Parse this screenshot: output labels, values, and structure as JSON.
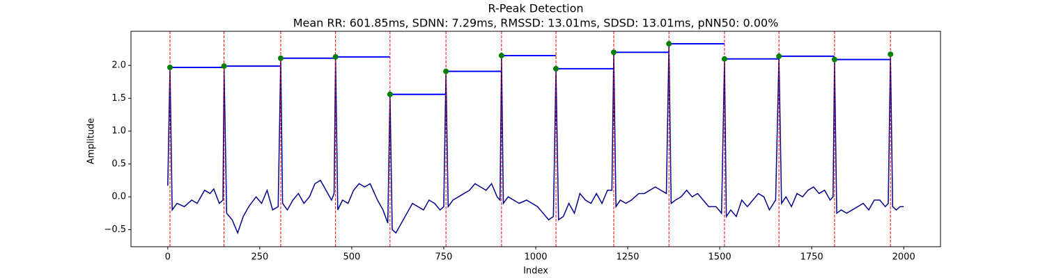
{
  "chart_data": {
    "type": "line",
    "title": "R-Peak Detection",
    "subtitle": "Mean RR: 601.85ms, SDNN: 7.29ms, RMSSD: 13.01ms, SDSD: 13.01ms, pNN50: 0.00%",
    "x_label": "Index",
    "y_label": "Amplitude",
    "xlim": [
      -100,
      2100
    ],
    "ylim": [
      -0.76,
      2.52
    ],
    "xticks": [
      0,
      250,
      500,
      750,
      1000,
      1250,
      1500,
      1750,
      2000
    ],
    "yticks": [
      {
        "value": -0.5,
        "label": "−0.5"
      },
      {
        "value": 0,
        "label": "0.0"
      },
      0.5,
      {
        "value": 1,
        "label": "1.0"
      },
      1.5,
      {
        "value": 2,
        "label": "2.0"
      }
    ],
    "series": [
      {
        "color": "#00008b",
        "x": [
          0,
          6,
          12,
          25,
          45,
          65,
          80,
          100,
          115,
          125,
          140,
          150,
          153,
          160,
          175,
          190,
          205,
          220,
          240,
          255,
          270,
          285,
          300,
          307,
          312,
          325,
          340,
          355,
          370,
          385,
          400,
          415,
          430,
          445,
          452,
          456,
          462,
          475,
          490,
          505,
          520,
          535,
          550,
          570,
          585,
          598,
          604,
          610,
          620,
          635,
          650,
          665,
          680,
          695,
          710,
          725,
          740,
          750,
          756,
          762,
          775,
          790,
          805,
          820,
          835,
          850,
          865,
          880,
          895,
          903,
          907,
          912,
          925,
          940,
          955,
          975,
          990,
          1005,
          1020,
          1035,
          1048,
          1055,
          1062,
          1075,
          1090,
          1105,
          1120,
          1135,
          1150,
          1165,
          1180,
          1195,
          1207,
          1212,
          1218,
          1230,
          1245,
          1260,
          1280,
          1295,
          1310,
          1325,
          1340,
          1355,
          1362,
          1368,
          1380,
          1395,
          1410,
          1425,
          1440,
          1455,
          1470,
          1490,
          1505,
          1513,
          1518,
          1530,
          1545,
          1560,
          1575,
          1590,
          1605,
          1620,
          1635,
          1652,
          1661,
          1668,
          1680,
          1695,
          1710,
          1725,
          1740,
          1755,
          1770,
          1785,
          1800,
          1808,
          1812,
          1818,
          1830,
          1845,
          1860,
          1875,
          1890,
          1905,
          1920,
          1935,
          1950,
          1958,
          1964,
          1970,
          1980,
          1990,
          2000
        ],
        "values": [
          0.17,
          1.97,
          -0.2,
          -0.1,
          -0.15,
          -0.05,
          -0.1,
          0.1,
          0.05,
          0.12,
          -0.1,
          -0.05,
          1.99,
          -0.25,
          -0.35,
          -0.55,
          -0.3,
          -0.15,
          0.0,
          -0.1,
          0.1,
          -0.2,
          -0.15,
          2.11,
          -0.1,
          -0.2,
          -0.05,
          0.05,
          -0.1,
          0.0,
          0.2,
          0.25,
          0.1,
          -0.05,
          0.05,
          2.13,
          -0.2,
          -0.05,
          -0.1,
          0.1,
          0.2,
          0.15,
          0.2,
          -0.05,
          -0.2,
          -0.4,
          1.56,
          -0.5,
          -0.55,
          -0.4,
          -0.25,
          -0.1,
          -0.15,
          -0.2,
          -0.05,
          -0.1,
          -0.2,
          -0.15,
          1.91,
          -0.15,
          -0.05,
          0.0,
          0.05,
          0.1,
          0.2,
          0.15,
          0.1,
          0.2,
          0.0,
          -0.05,
          2.15,
          -0.1,
          0.0,
          -0.05,
          -0.1,
          -0.05,
          -0.1,
          -0.15,
          -0.25,
          -0.35,
          -0.3,
          1.95,
          -0.35,
          -0.3,
          -0.1,
          -0.25,
          0.05,
          -0.05,
          -0.1,
          0.05,
          -0.1,
          0.1,
          0.1,
          2.2,
          -0.15,
          -0.05,
          -0.1,
          -0.05,
          0.05,
          0.05,
          0.1,
          0.15,
          0.1,
          0.05,
          2.33,
          -0.1,
          -0.05,
          0.0,
          0.1,
          0.0,
          0.05,
          -0.05,
          -0.15,
          -0.15,
          -0.25,
          2.1,
          -0.3,
          -0.2,
          -0.3,
          -0.05,
          -0.15,
          -0.05,
          0.05,
          0.0,
          -0.2,
          -0.05,
          2.14,
          -0.1,
          0.0,
          -0.15,
          0.05,
          0.0,
          0.1,
          0.15,
          0.05,
          0.1,
          -0.05,
          0.0,
          2.09,
          -0.25,
          -0.2,
          -0.25,
          -0.2,
          -0.15,
          -0.1,
          -0.2,
          -0.05,
          -0.05,
          -0.15,
          -0.1,
          2.17,
          -0.15,
          -0.2,
          -0.15,
          -0.15
        ]
      }
    ],
    "peaks": {
      "color": "green",
      "line_color": "red",
      "rr_color": "blue",
      "x": [
        6,
        153,
        307,
        456,
        604,
        756,
        907,
        1055,
        1212,
        1362,
        1513,
        1661,
        1812,
        1964
      ],
      "values": [
        1.97,
        1.99,
        2.11,
        2.13,
        1.56,
        1.91,
        2.15,
        1.95,
        2.2,
        2.33,
        2.1,
        2.14,
        2.09,
        2.17
      ]
    }
  }
}
